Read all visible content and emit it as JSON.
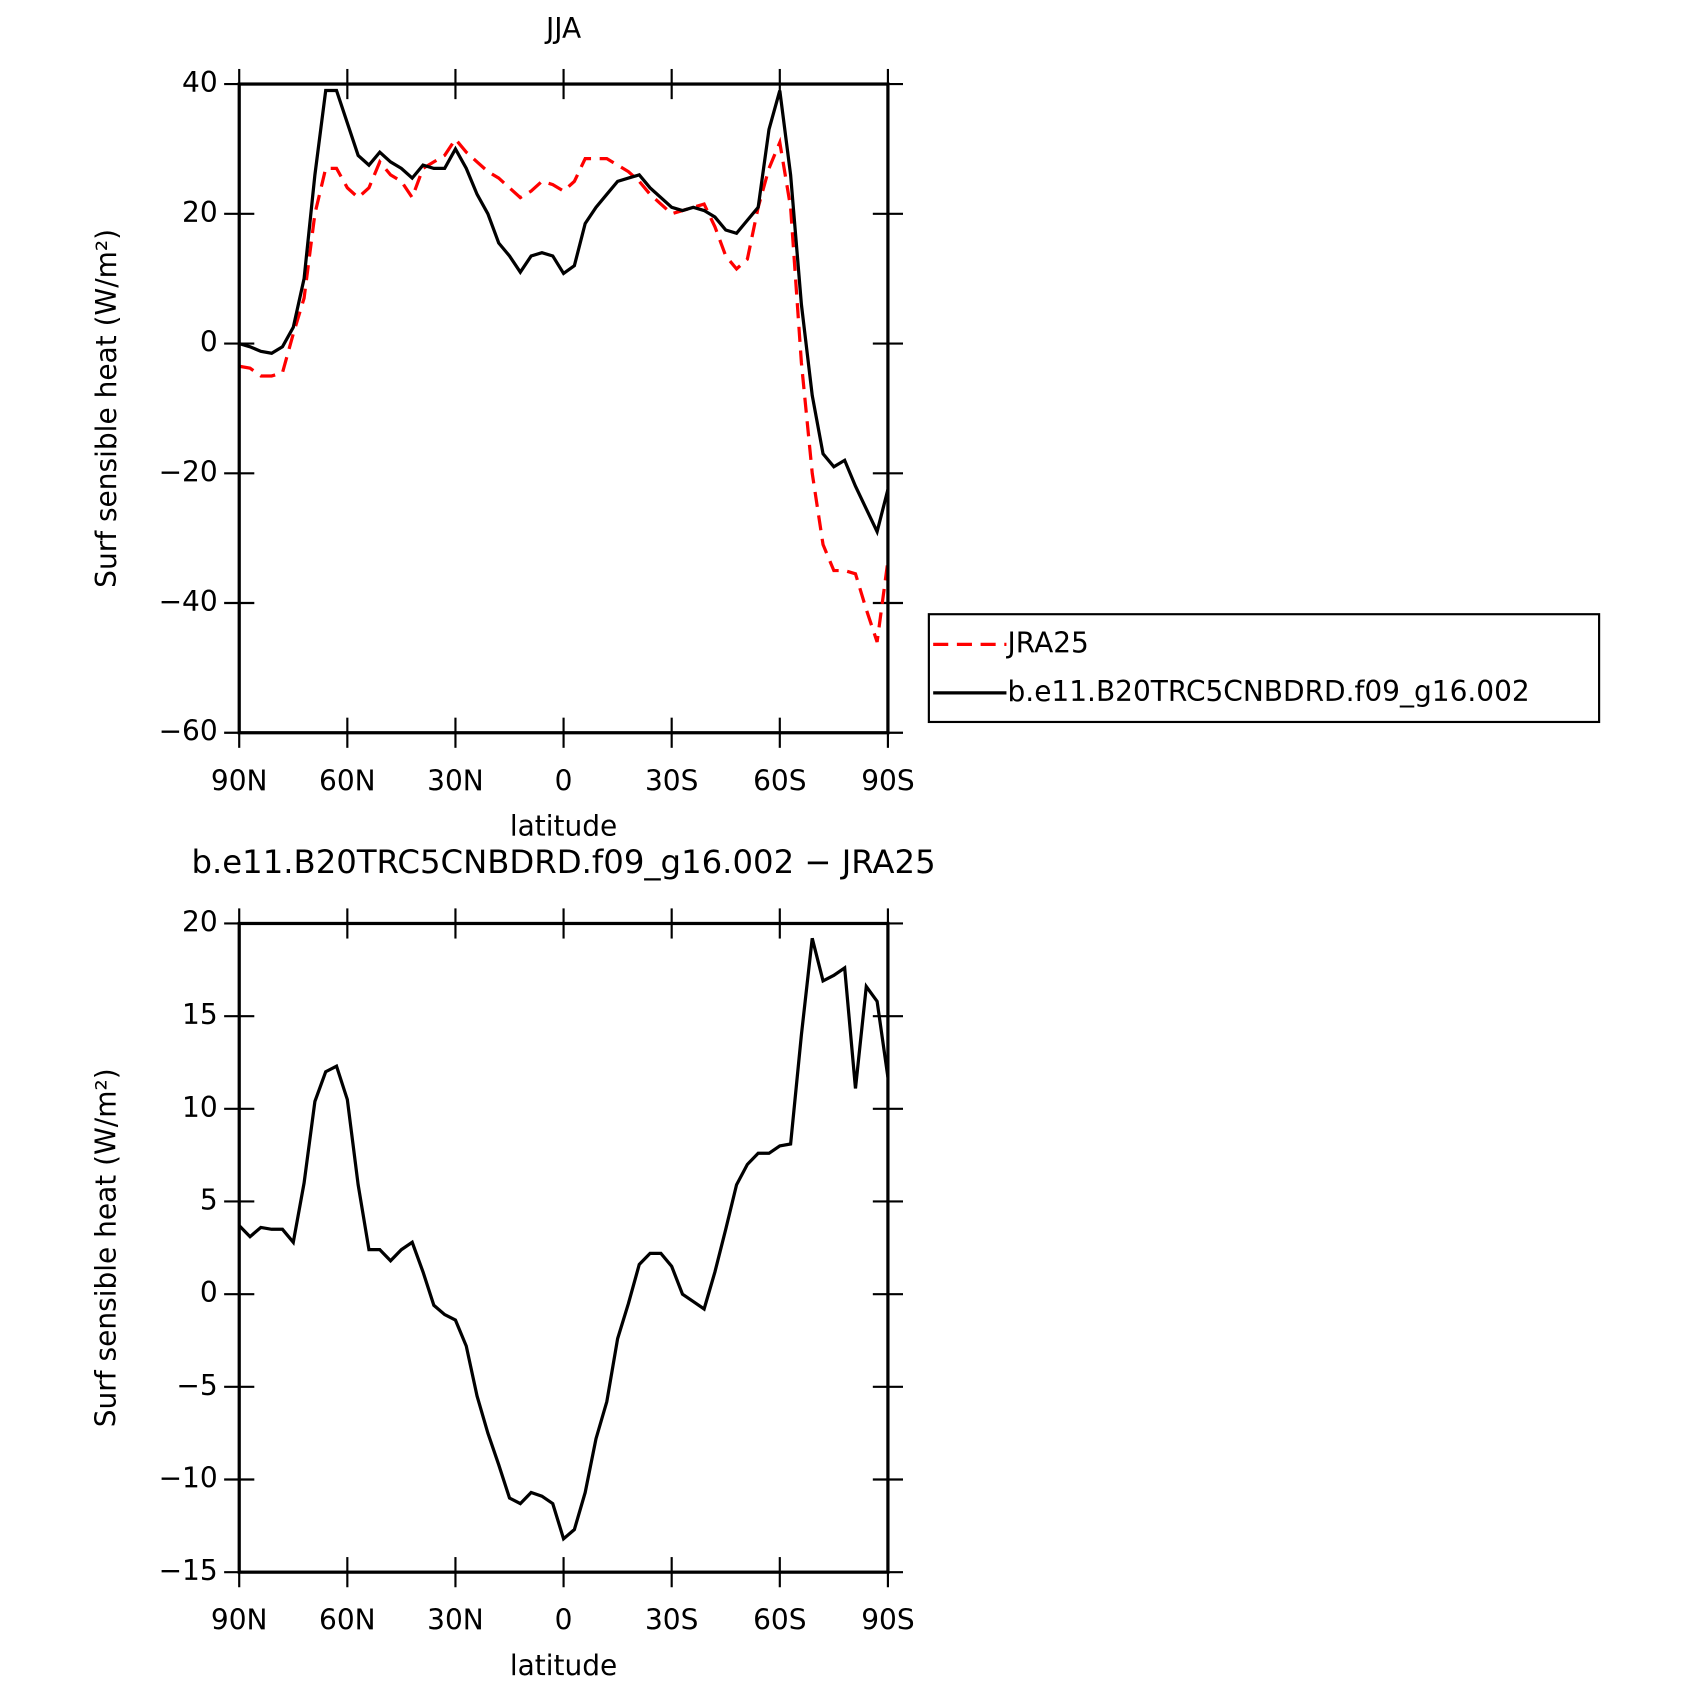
{
  "chart_data": [
    {
      "type": "line",
      "title": "JJA",
      "xlabel": "latitude",
      "ylabel": "Surf sensible heat (W/m²)",
      "x": [
        90,
        87,
        84,
        81,
        78,
        75,
        72,
        69,
        66,
        63,
        60,
        57,
        54,
        51,
        48,
        45,
        42,
        39,
        36,
        33,
        30,
        27,
        24,
        21,
        18,
        15,
        12,
        9,
        6,
        3,
        0,
        -3,
        -6,
        -9,
        -12,
        -15,
        -18,
        -21,
        -24,
        -27,
        -30,
        -33,
        -36,
        -39,
        -42,
        -45,
        -48,
        -51,
        -54,
        -57,
        -60,
        -63,
        -66,
        -69,
        -72,
        -75,
        -78,
        -81,
        -84,
        -87,
        -90
      ],
      "series": [
        {
          "name": "JRA25",
          "color": "#ff0000",
          "linestyle": "dashed",
          "values": [
            -3.5,
            -3.8,
            -5,
            -5,
            -4.5,
            1.5,
            7,
            20,
            27,
            27,
            24,
            22.5,
            24,
            28,
            26,
            25,
            22.5,
            27,
            28,
            29,
            31.5,
            29.5,
            28,
            26.5,
            25.5,
            24,
            22.5,
            23.5,
            25,
            24.5,
            23.5,
            25,
            28.5,
            28.5,
            28.5,
            27.5,
            26.5,
            25,
            23,
            21.5,
            20,
            20.5,
            21,
            21.5,
            18,
            13.5,
            11.5,
            13,
            21,
            27,
            31,
            21,
            -3,
            -20,
            -31,
            -35,
            -35,
            -35.5,
            -41,
            -46,
            -33.5
          ]
        },
        {
          "name": "b.e11.B20TRC5CNBDRD.f09_g16.002",
          "color": "#000000",
          "linestyle": "solid",
          "values": [
            0,
            -0.5,
            -1.2,
            -1.5,
            -0.5,
            2.5,
            10,
            26,
            39,
            39,
            34,
            29,
            27.5,
            29.5,
            28,
            27,
            25.5,
            27.5,
            27,
            27,
            30,
            27,
            23,
            20,
            15.5,
            13.5,
            11,
            13.5,
            14,
            13.5,
            10.8,
            12,
            18.5,
            21,
            23,
            25,
            25.5,
            26,
            24,
            22.5,
            21,
            20.5,
            21,
            20.5,
            19.5,
            17.5,
            17,
            19,
            21,
            33,
            39,
            26,
            6,
            -8,
            -17,
            -19,
            -18,
            -22,
            -25.5,
            -29,
            -22.5
          ]
        }
      ],
      "xlim": [
        90,
        -90
      ],
      "xticks": [
        {
          "value": 90,
          "label": "90N"
        },
        {
          "value": 60,
          "label": "60N"
        },
        {
          "value": 30,
          "label": "30N"
        },
        0,
        {
          "value": -30,
          "label": "30S"
        },
        {
          "value": -60,
          "label": "60S"
        },
        {
          "value": -90,
          "label": "90S"
        }
      ],
      "ylim": [
        -60,
        40
      ],
      "yticks": [
        40,
        20,
        0,
        {
          "value": -20,
          "label": "−20"
        },
        {
          "value": -40,
          "label": "−40"
        },
        {
          "value": -60,
          "label": "−60"
        }
      ],
      "legend": "right"
    },
    {
      "type": "line",
      "title": "b.e11.B20TRC5CNBDRD.f09_g16.002 − JRA25",
      "xlabel": "latitude",
      "ylabel": "Surf sensible heat (W/m²)",
      "x": [
        90,
        87,
        84,
        81,
        78,
        75,
        72,
        69,
        66,
        63,
        60,
        57,
        54,
        51,
        48,
        45,
        42,
        39,
        36,
        33,
        30,
        27,
        24,
        21,
        18,
        15,
        12,
        9,
        6,
        3,
        0,
        -3,
        -6,
        -9,
        -12,
        -15,
        -18,
        -21,
        -24,
        -27,
        -30,
        -33,
        -36,
        -39,
        -42,
        -45,
        -48,
        -51,
        -54,
        -57,
        -60,
        -63,
        -66,
        -69,
        -72,
        -75,
        -78,
        -81,
        -84,
        -87,
        -90
      ],
      "values": [
        3.7,
        3.1,
        3.6,
        3.5,
        3.5,
        2.8,
        6,
        10.4,
        12,
        12.3,
        10.5,
        5.9,
        2.4,
        2.4,
        1.8,
        2.4,
        2.8,
        1.2,
        -0.6,
        -1.1,
        -1.4,
        -2.8,
        -5.5,
        -7.5,
        -9.2,
        -11,
        -11.3,
        -10.7,
        -10.9,
        -11.3,
        -13.2,
        -12.7,
        -10.7,
        -7.8,
        -5.8,
        -2.4,
        -0.5,
        1.6,
        2.2,
        2.2,
        1.5,
        0,
        -0.4,
        -0.8,
        1.2,
        3.5,
        5.9,
        7,
        7.6,
        7.6,
        8,
        8.1,
        14,
        19.2,
        16.9,
        17.2,
        17.6,
        11.1,
        16.6,
        15.8,
        11.7
      ],
      "color": "#000000",
      "xlim": [
        90,
        -90
      ],
      "xticks": [
        {
          "value": 90,
          "label": "90N"
        },
        {
          "value": 60,
          "label": "60N"
        },
        {
          "value": 30,
          "label": "30N"
        },
        0,
        {
          "value": -30,
          "label": "30S"
        },
        {
          "value": -60,
          "label": "60S"
        },
        {
          "value": -90,
          "label": "90S"
        }
      ],
      "ylim": [
        -15,
        20
      ],
      "yticks": [
        20,
        15,
        10,
        5,
        0,
        {
          "value": -5,
          "label": "−5"
        },
        {
          "value": -10,
          "label": "−10"
        },
        {
          "value": -15,
          "label": "−15"
        }
      ]
    }
  ]
}
